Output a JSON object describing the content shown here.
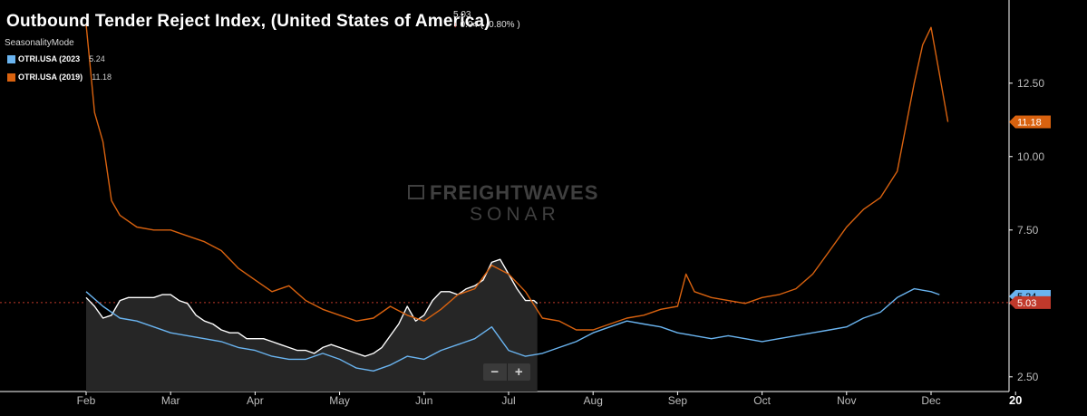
{
  "header": {
    "title": "Outbound  Tender Reject Index, (United States of America)",
    "current_value": "5.03",
    "change_text": "0.04 ( -0.80% )",
    "change_icon": "down-arrow-icon",
    "subtitle": "SeasonalityMode"
  },
  "legend": [
    {
      "label": "OTRI.USA (2023",
      "value": "5.24",
      "color": "#6ab4f0"
    },
    {
      "label": "OTRI.USA (2019)",
      "value": "11.18",
      "color": "#d9620f"
    }
  ],
  "watermark": {
    "line1": "FREIGHTWAVES",
    "line2": "SONAR",
    "icon": "freightwaves-logo-icon"
  },
  "zoom": {
    "minus": "−",
    "plus": "+"
  },
  "colors": {
    "background": "#000000",
    "current_line": "#ffffff",
    "area_fill": "#262626",
    "series_2023": "#6ab4f0",
    "series_2019": "#d9620f",
    "reference": "#c0392b"
  },
  "chart_data": {
    "type": "line",
    "title": "Outbound  Tender Reject Index, (United States of America)",
    "subtitle": "SeasonalityMode",
    "x_ticks": [
      "Feb",
      "Mar",
      "Apr",
      "May",
      "Jun",
      "Jul",
      "Aug",
      "Sep",
      "Oct",
      "Nov",
      "Dec",
      "20"
    ],
    "y_ticks": [
      "2.50",
      "5.00",
      "7.50",
      "10.00",
      "12.50"
    ],
    "ylim": [
      2.0,
      14.9
    ],
    "grid": false,
    "legend_position": "top-left",
    "reference_line": {
      "value": 5.03,
      "label": "5.03",
      "style": "dotted"
    },
    "end_labels": [
      {
        "series": "OTRI.USA (2019)",
        "value": 11.18,
        "label": "11.18"
      },
      {
        "series": "OTRI.USA (2023",
        "value": 5.24,
        "label": "5.24"
      },
      {
        "series": "current",
        "value": 5.03,
        "label": "5.03"
      }
    ],
    "series": [
      {
        "key": "current",
        "color": "#ffffff",
        "area": true,
        "points": [
          [
            1.0,
            5.2
          ],
          [
            1.1,
            4.9
          ],
          [
            1.2,
            4.5
          ],
          [
            1.3,
            4.6
          ],
          [
            1.4,
            5.1
          ],
          [
            1.5,
            5.2
          ],
          [
            1.6,
            5.2
          ],
          [
            1.7,
            5.2
          ],
          [
            1.8,
            5.2
          ],
          [
            1.9,
            5.3
          ],
          [
            2.0,
            5.3
          ],
          [
            2.1,
            5.1
          ],
          [
            2.2,
            5.0
          ],
          [
            2.3,
            4.6
          ],
          [
            2.4,
            4.4
          ],
          [
            2.5,
            4.3
          ],
          [
            2.6,
            4.1
          ],
          [
            2.7,
            4.0
          ],
          [
            2.8,
            4.0
          ],
          [
            2.9,
            3.8
          ],
          [
            3.0,
            3.8
          ],
          [
            3.1,
            3.8
          ],
          [
            3.2,
            3.7
          ],
          [
            3.3,
            3.6
          ],
          [
            3.4,
            3.5
          ],
          [
            3.5,
            3.4
          ],
          [
            3.6,
            3.4
          ],
          [
            3.7,
            3.3
          ],
          [
            3.8,
            3.5
          ],
          [
            3.9,
            3.6
          ],
          [
            4.0,
            3.5
          ],
          [
            4.1,
            3.4
          ],
          [
            4.2,
            3.3
          ],
          [
            4.3,
            3.2
          ],
          [
            4.4,
            3.3
          ],
          [
            4.5,
            3.5
          ],
          [
            4.6,
            3.9
          ],
          [
            4.7,
            4.3
          ],
          [
            4.8,
            4.9
          ],
          [
            4.9,
            4.4
          ],
          [
            5.0,
            4.6
          ],
          [
            5.1,
            5.1
          ],
          [
            5.2,
            5.4
          ],
          [
            5.3,
            5.4
          ],
          [
            5.4,
            5.3
          ],
          [
            5.5,
            5.5
          ],
          [
            5.6,
            5.6
          ],
          [
            5.7,
            5.8
          ],
          [
            5.8,
            6.4
          ],
          [
            5.9,
            6.5
          ],
          [
            6.0,
            6.0
          ],
          [
            6.1,
            5.5
          ],
          [
            6.2,
            5.1
          ],
          [
            6.3,
            5.1
          ],
          [
            6.34,
            5.0
          ]
        ]
      },
      {
        "key": "OTRI.USA (2023",
        "color": "#6ab4f0",
        "area": false,
        "points": [
          [
            1.0,
            5.4
          ],
          [
            1.2,
            4.9
          ],
          [
            1.4,
            4.5
          ],
          [
            1.6,
            4.4
          ],
          [
            1.8,
            4.2
          ],
          [
            2.0,
            4.0
          ],
          [
            2.2,
            3.9
          ],
          [
            2.4,
            3.8
          ],
          [
            2.6,
            3.7
          ],
          [
            2.8,
            3.5
          ],
          [
            3.0,
            3.4
          ],
          [
            3.2,
            3.2
          ],
          [
            3.4,
            3.1
          ],
          [
            3.6,
            3.1
          ],
          [
            3.8,
            3.3
          ],
          [
            4.0,
            3.1
          ],
          [
            4.2,
            2.8
          ],
          [
            4.4,
            2.7
          ],
          [
            4.6,
            2.9
          ],
          [
            4.8,
            3.2
          ],
          [
            5.0,
            3.1
          ],
          [
            5.2,
            3.4
          ],
          [
            5.4,
            3.6
          ],
          [
            5.6,
            3.8
          ],
          [
            5.8,
            4.2
          ],
          [
            6.0,
            3.4
          ],
          [
            6.2,
            3.2
          ],
          [
            6.4,
            3.3
          ],
          [
            6.6,
            3.5
          ],
          [
            6.8,
            3.7
          ],
          [
            7.0,
            4.0
          ],
          [
            7.2,
            4.2
          ],
          [
            7.4,
            4.4
          ],
          [
            7.6,
            4.3
          ],
          [
            7.8,
            4.2
          ],
          [
            8.0,
            4.0
          ],
          [
            8.2,
            3.9
          ],
          [
            8.4,
            3.8
          ],
          [
            8.6,
            3.9
          ],
          [
            8.8,
            3.8
          ],
          [
            9.0,
            3.7
          ],
          [
            9.2,
            3.8
          ],
          [
            9.4,
            3.9
          ],
          [
            9.6,
            4.0
          ],
          [
            9.8,
            4.1
          ],
          [
            10.0,
            4.2
          ],
          [
            10.2,
            4.5
          ],
          [
            10.4,
            4.7
          ],
          [
            10.6,
            5.2
          ],
          [
            10.8,
            5.5
          ],
          [
            11.0,
            5.4
          ],
          [
            11.1,
            5.3
          ]
        ]
      },
      {
        "key": "OTRI.USA (2019)",
        "color": "#d9620f",
        "area": false,
        "points": [
          [
            1.0,
            14.5
          ],
          [
            1.05,
            13.0
          ],
          [
            1.1,
            11.5
          ],
          [
            1.2,
            10.5
          ],
          [
            1.3,
            8.5
          ],
          [
            1.4,
            8.0
          ],
          [
            1.5,
            7.8
          ],
          [
            1.6,
            7.6
          ],
          [
            1.8,
            7.5
          ],
          [
            2.0,
            7.5
          ],
          [
            2.2,
            7.3
          ],
          [
            2.4,
            7.1
          ],
          [
            2.6,
            6.8
          ],
          [
            2.8,
            6.2
          ],
          [
            3.0,
            5.8
          ],
          [
            3.2,
            5.4
          ],
          [
            3.4,
            5.6
          ],
          [
            3.6,
            5.1
          ],
          [
            3.8,
            4.8
          ],
          [
            4.0,
            4.6
          ],
          [
            4.2,
            4.4
          ],
          [
            4.4,
            4.5
          ],
          [
            4.6,
            4.9
          ],
          [
            4.8,
            4.6
          ],
          [
            5.0,
            4.4
          ],
          [
            5.2,
            4.8
          ],
          [
            5.4,
            5.3
          ],
          [
            5.6,
            5.5
          ],
          [
            5.8,
            6.3
          ],
          [
            6.0,
            6.0
          ],
          [
            6.2,
            5.4
          ],
          [
            6.4,
            4.5
          ],
          [
            6.6,
            4.4
          ],
          [
            6.8,
            4.1
          ],
          [
            7.0,
            4.1
          ],
          [
            7.2,
            4.3
          ],
          [
            7.4,
            4.5
          ],
          [
            7.6,
            4.6
          ],
          [
            7.8,
            4.8
          ],
          [
            8.0,
            4.9
          ],
          [
            8.1,
            6.0
          ],
          [
            8.2,
            5.4
          ],
          [
            8.4,
            5.2
          ],
          [
            8.6,
            5.1
          ],
          [
            8.8,
            5.0
          ],
          [
            9.0,
            5.2
          ],
          [
            9.2,
            5.3
          ],
          [
            9.4,
            5.5
          ],
          [
            9.6,
            6.0
          ],
          [
            9.8,
            6.8
          ],
          [
            10.0,
            7.6
          ],
          [
            10.2,
            8.2
          ],
          [
            10.4,
            8.6
          ],
          [
            10.6,
            9.5
          ],
          [
            10.8,
            12.5
          ],
          [
            10.9,
            13.8
          ],
          [
            11.0,
            14.4
          ],
          [
            11.1,
            12.8
          ],
          [
            11.2,
            11.18
          ]
        ]
      }
    ]
  }
}
